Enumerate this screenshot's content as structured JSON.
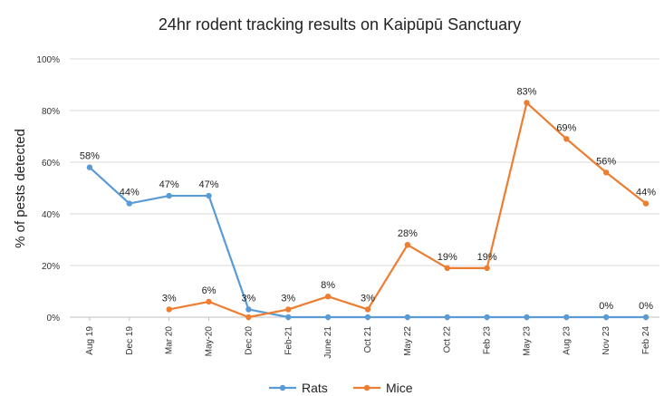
{
  "chart_data": {
    "type": "line",
    "title": "24hr rodent tracking results on Kaipūpū  Sanctuary",
    "ylabel": "% of pests detected",
    "xlabel": "",
    "categories": [
      "Aug 19",
      "Dec 19",
      "Mar 20",
      "May-20",
      "Dec 20",
      "Feb-21",
      "June 21",
      "Oct 21",
      "May 22",
      "Oct 22",
      "Feb 23",
      "May 23",
      "Aug 23",
      "Nov 23",
      "Feb 24"
    ],
    "ylim": [
      0,
      100
    ],
    "yticks": [
      "0%",
      "20%",
      "40%",
      "60%",
      "80%",
      "100%"
    ],
    "grid": true,
    "legend_position": "bottom",
    "series": [
      {
        "name": "Rats",
        "color": "#5b9bd5",
        "values": [
          58,
          44,
          47,
          47,
          3,
          0,
          0,
          0,
          0,
          0,
          0,
          0,
          0,
          0,
          0
        ],
        "labels": [
          "58%",
          "44%",
          "47%",
          "47%",
          "3%",
          "",
          "",
          "",
          "",
          "",
          "",
          "",
          "",
          "0%",
          "0%"
        ]
      },
      {
        "name": "Mice",
        "color": "#ed7d31",
        "values": [
          null,
          null,
          3,
          6,
          0,
          3,
          8,
          3,
          28,
          19,
          19,
          83,
          69,
          56,
          44
        ],
        "labels": [
          "",
          "",
          "3%",
          "6%",
          "",
          "3%",
          "8%",
          "3%",
          "28%",
          "19%",
          "19%",
          "83%",
          "69%",
          "56%",
          "44%"
        ]
      }
    ]
  }
}
